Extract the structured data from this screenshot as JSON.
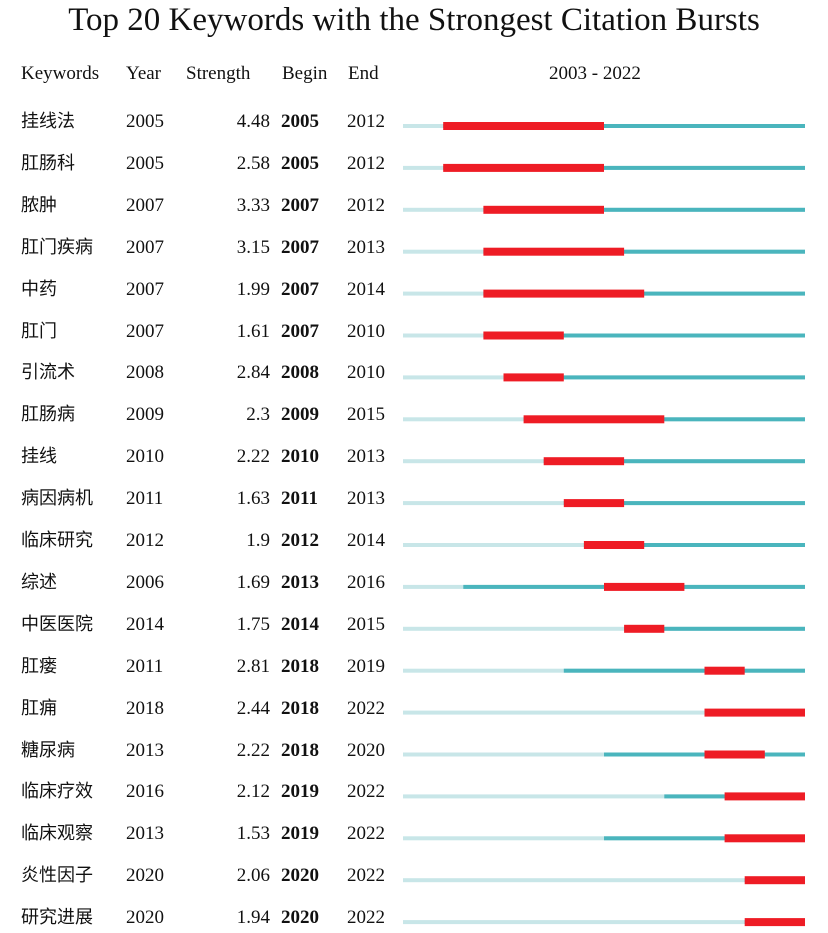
{
  "title": "Top 20 Keywords with the Strongest Citation Bursts",
  "headers": {
    "keyword": "Keywords",
    "year": "Year",
    "strength": "Strength",
    "begin": "Begin",
    "end": "End",
    "range": "2003 - 2022"
  },
  "colors": {
    "before_appearance": "#c8e6e8",
    "active": "#4ab5bd",
    "burst": "#ee1c25"
  },
  "chart_data": {
    "type": "table",
    "timeline_start": 2003,
    "timeline_end": 2022,
    "rows": [
      {
        "keyword": "挂线法",
        "year": 2005,
        "strength": "4.48",
        "begin": 2005,
        "end": 2012
      },
      {
        "keyword": "肛肠科",
        "year": 2005,
        "strength": "2.58",
        "begin": 2005,
        "end": 2012
      },
      {
        "keyword": "脓肿",
        "year": 2007,
        "strength": "3.33",
        "begin": 2007,
        "end": 2012
      },
      {
        "keyword": "肛门疾病",
        "year": 2007,
        "strength": "3.15",
        "begin": 2007,
        "end": 2013
      },
      {
        "keyword": "中药",
        "year": 2007,
        "strength": "1.99",
        "begin": 2007,
        "end": 2014
      },
      {
        "keyword": "肛门",
        "year": 2007,
        "strength": "1.61",
        "begin": 2007,
        "end": 2010
      },
      {
        "keyword": "引流术",
        "year": 2008,
        "strength": "2.84",
        "begin": 2008,
        "end": 2010
      },
      {
        "keyword": "肛肠病",
        "year": 2009,
        "strength": "2.3",
        "begin": 2009,
        "end": 2015
      },
      {
        "keyword": "挂线",
        "year": 2010,
        "strength": "2.22",
        "begin": 2010,
        "end": 2013
      },
      {
        "keyword": "病因病机",
        "year": 2011,
        "strength": "1.63",
        "begin": 2011,
        "end": 2013
      },
      {
        "keyword": "临床研究",
        "year": 2012,
        "strength": "1.9",
        "begin": 2012,
        "end": 2014
      },
      {
        "keyword": "综述",
        "year": 2006,
        "strength": "1.69",
        "begin": 2013,
        "end": 2016
      },
      {
        "keyword": "中医医院",
        "year": 2014,
        "strength": "1.75",
        "begin": 2014,
        "end": 2015
      },
      {
        "keyword": "肛瘘",
        "year": 2011,
        "strength": "2.81",
        "begin": 2018,
        "end": 2019
      },
      {
        "keyword": "肛痈",
        "year": 2018,
        "strength": "2.44",
        "begin": 2018,
        "end": 2022
      },
      {
        "keyword": "糖尿病",
        "year": 2013,
        "strength": "2.22",
        "begin": 2018,
        "end": 2020
      },
      {
        "keyword": "临床疗效",
        "year": 2016,
        "strength": "2.12",
        "begin": 2019,
        "end": 2022
      },
      {
        "keyword": "临床观察",
        "year": 2013,
        "strength": "1.53",
        "begin": 2019,
        "end": 2022
      },
      {
        "keyword": "炎性因子",
        "year": 2020,
        "strength": "2.06",
        "begin": 2020,
        "end": 2022
      },
      {
        "keyword": "研究进展",
        "year": 2020,
        "strength": "1.94",
        "begin": 2020,
        "end": 2022
      }
    ]
  }
}
